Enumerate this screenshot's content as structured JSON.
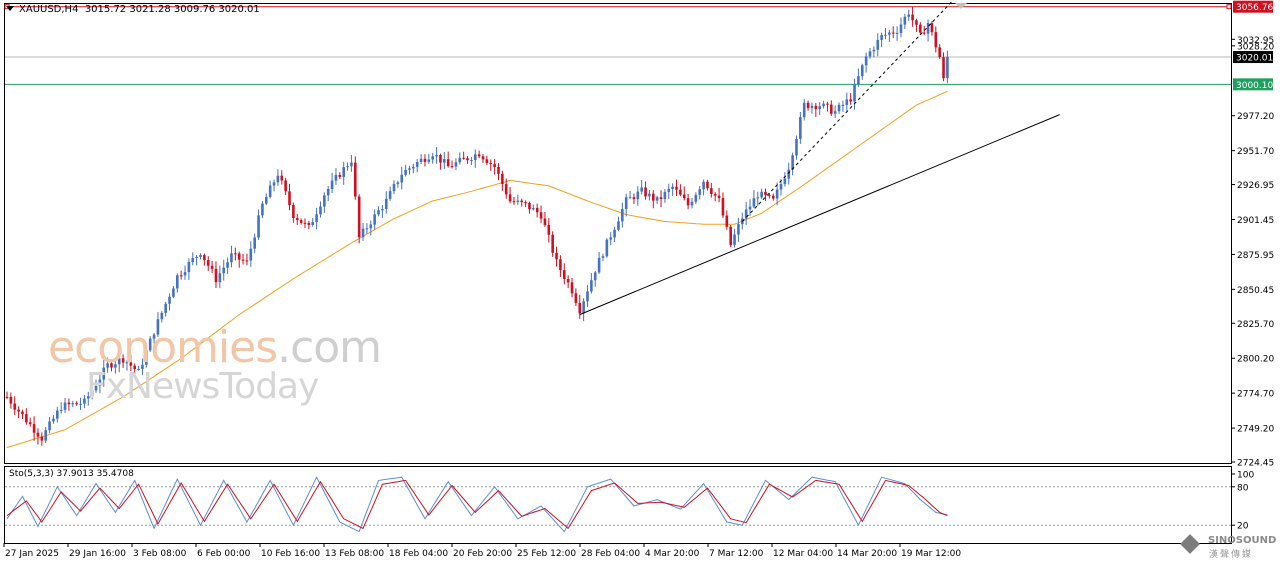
{
  "header": {
    "symbol": "XAUUSD,H4",
    "ohlc": "3015.72 3021.28 3009.76 3020.01"
  },
  "oscillator": {
    "label": "Sto(5,3,3) 37.9013 35.4708",
    "levels": [
      "100",
      "80",
      "20"
    ]
  },
  "watermark": {
    "line1_main": "economies",
    "line1_dot": ".com",
    "line2": "FxNewsToday"
  },
  "logo": {
    "name": "SINOSOUND",
    "sub": "漢聲傳媒"
  },
  "colors": {
    "bull": "#4472c4",
    "bear": "#d01020",
    "ma": "#f0a020",
    "resistance": "#d01020",
    "support": "#20a060",
    "trend": "#000000",
    "sto_main": "#5b8ed8",
    "sto_signal": "#d01020"
  },
  "chart_data": {
    "type": "candlestick",
    "y_ticks": [
      "3032.95",
      "3028.20",
      "2977.20",
      "2951.70",
      "2926.95",
      "2901.45",
      "2875.95",
      "2850.45",
      "2825.70",
      "2800.20",
      "2774.70",
      "2749.20",
      "2724.45"
    ],
    "x_ticks": [
      "27 Jan 2025",
      "29 Jan 16:00",
      "3 Feb 08:00",
      "6 Feb 00:00",
      "10 Feb 16:00",
      "13 Feb 08:00",
      "18 Feb 04:00",
      "20 Feb 20:00",
      "25 Feb 12:00",
      "28 Feb 04:00",
      "4 Mar 20:00",
      "7 Mar 12:00",
      "12 Mar 04:00",
      "14 Mar 20:00",
      "19 Mar 12:00"
    ],
    "ylim": [
      2724.45,
      3058
    ],
    "levels": [
      {
        "label": "3056.76",
        "value": 3056.76,
        "role": "resistance"
      },
      {
        "label": "3020.01",
        "value": 3020.01,
        "role": "current"
      },
      {
        "label": "3000.10",
        "value": 3000.1,
        "role": "support"
      }
    ],
    "close_path": [
      {
        "i": 0,
        "v": 2772
      },
      {
        "i": 5,
        "v": 2755
      },
      {
        "i": 9,
        "v": 2742
      },
      {
        "i": 14,
        "v": 2765
      },
      {
        "i": 20,
        "v": 2768
      },
      {
        "i": 26,
        "v": 2795
      },
      {
        "i": 30,
        "v": 2800
      },
      {
        "i": 34,
        "v": 2790
      },
      {
        "i": 38,
        "v": 2820
      },
      {
        "i": 44,
        "v": 2860
      },
      {
        "i": 50,
        "v": 2878
      },
      {
        "i": 54,
        "v": 2858
      },
      {
        "i": 58,
        "v": 2875
      },
      {
        "i": 62,
        "v": 2870
      },
      {
        "i": 66,
        "v": 2912
      },
      {
        "i": 70,
        "v": 2935
      },
      {
        "i": 74,
        "v": 2905
      },
      {
        "i": 78,
        "v": 2895
      },
      {
        "i": 82,
        "v": 2920
      },
      {
        "i": 86,
        "v": 2935
      },
      {
        "i": 89,
        "v": 2945
      },
      {
        "i": 91,
        "v": 2888
      },
      {
        "i": 94,
        "v": 2900
      },
      {
        "i": 98,
        "v": 2915
      },
      {
        "i": 102,
        "v": 2935
      },
      {
        "i": 106,
        "v": 2943
      },
      {
        "i": 110,
        "v": 2950
      },
      {
        "i": 114,
        "v": 2940
      },
      {
        "i": 118,
        "v": 2945
      },
      {
        "i": 122,
        "v": 2950
      },
      {
        "i": 126,
        "v": 2940
      },
      {
        "i": 130,
        "v": 2915
      },
      {
        "i": 134,
        "v": 2912
      },
      {
        "i": 138,
        "v": 2905
      },
      {
        "i": 142,
        "v": 2870
      },
      {
        "i": 146,
        "v": 2850
      },
      {
        "i": 148,
        "v": 2836
      },
      {
        "i": 152,
        "v": 2865
      },
      {
        "i": 156,
        "v": 2890
      },
      {
        "i": 160,
        "v": 2915
      },
      {
        "i": 164,
        "v": 2922
      },
      {
        "i": 168,
        "v": 2915
      },
      {
        "i": 172,
        "v": 2925
      },
      {
        "i": 176,
        "v": 2912
      },
      {
        "i": 180,
        "v": 2930
      },
      {
        "i": 184,
        "v": 2915
      },
      {
        "i": 187,
        "v": 2883
      },
      {
        "i": 190,
        "v": 2903
      },
      {
        "i": 194,
        "v": 2920
      },
      {
        "i": 198,
        "v": 2915
      },
      {
        "i": 202,
        "v": 2940
      },
      {
        "i": 206,
        "v": 2985
      },
      {
        "i": 210,
        "v": 2985
      },
      {
        "i": 214,
        "v": 2980
      },
      {
        "i": 218,
        "v": 2990
      },
      {
        "i": 222,
        "v": 3020
      },
      {
        "i": 226,
        "v": 3035
      },
      {
        "i": 230,
        "v": 3040
      },
      {
        "i": 233,
        "v": 3053
      },
      {
        "i": 236,
        "v": 3035
      },
      {
        "i": 238,
        "v": 3045
      },
      {
        "i": 241,
        "v": 3020
      },
      {
        "i": 242,
        "v": 3003
      },
      {
        "i": 243,
        "v": 3020
      }
    ],
    "ma_path": [
      {
        "i": 0,
        "v": 2735
      },
      {
        "i": 15,
        "v": 2748
      },
      {
        "i": 30,
        "v": 2772
      },
      {
        "i": 45,
        "v": 2800
      },
      {
        "i": 60,
        "v": 2832
      },
      {
        "i": 75,
        "v": 2860
      },
      {
        "i": 90,
        "v": 2886
      },
      {
        "i": 100,
        "v": 2902
      },
      {
        "i": 110,
        "v": 2915
      },
      {
        "i": 120,
        "v": 2922
      },
      {
        "i": 130,
        "v": 2930
      },
      {
        "i": 140,
        "v": 2926
      },
      {
        "i": 150,
        "v": 2915
      },
      {
        "i": 160,
        "v": 2905
      },
      {
        "i": 170,
        "v": 2900
      },
      {
        "i": 180,
        "v": 2898
      },
      {
        "i": 188,
        "v": 2898
      },
      {
        "i": 195,
        "v": 2906
      },
      {
        "i": 205,
        "v": 2925
      },
      {
        "i": 215,
        "v": 2945
      },
      {
        "i": 225,
        "v": 2965
      },
      {
        "i": 235,
        "v": 2985
      },
      {
        "i": 243,
        "v": 2995
      }
    ],
    "trendlines": [
      {
        "style": "solid",
        "from": {
          "i": 148,
          "v": 2832
        },
        "to": {
          "i": 272,
          "v": 2978
        }
      },
      {
        "style": "dashed",
        "from": {
          "i": 190,
          "v": 2900
        },
        "to": {
          "i": 245,
          "v": 3063
        }
      }
    ],
    "sto_k": [
      {
        "i": 0,
        "v": 30
      },
      {
        "i": 4,
        "v": 65
      },
      {
        "i": 8,
        "v": 18
      },
      {
        "i": 13,
        "v": 80
      },
      {
        "i": 18,
        "v": 35
      },
      {
        "i": 23,
        "v": 85
      },
      {
        "i": 28,
        "v": 40
      },
      {
        "i": 33,
        "v": 90
      },
      {
        "i": 38,
        "v": 15
      },
      {
        "i": 44,
        "v": 92
      },
      {
        "i": 50,
        "v": 20
      },
      {
        "i": 56,
        "v": 90
      },
      {
        "i": 62,
        "v": 25
      },
      {
        "i": 68,
        "v": 90
      },
      {
        "i": 74,
        "v": 20
      },
      {
        "i": 80,
        "v": 95
      },
      {
        "i": 86,
        "v": 25
      },
      {
        "i": 91,
        "v": 10
      },
      {
        "i": 96,
        "v": 90
      },
      {
        "i": 102,
        "v": 95
      },
      {
        "i": 108,
        "v": 30
      },
      {
        "i": 114,
        "v": 88
      },
      {
        "i": 120,
        "v": 35
      },
      {
        "i": 126,
        "v": 80
      },
      {
        "i": 132,
        "v": 30
      },
      {
        "i": 138,
        "v": 50
      },
      {
        "i": 144,
        "v": 10
      },
      {
        "i": 150,
        "v": 80
      },
      {
        "i": 156,
        "v": 92
      },
      {
        "i": 162,
        "v": 50
      },
      {
        "i": 168,
        "v": 60
      },
      {
        "i": 174,
        "v": 45
      },
      {
        "i": 180,
        "v": 85
      },
      {
        "i": 186,
        "v": 25
      },
      {
        "i": 190,
        "v": 20
      },
      {
        "i": 196,
        "v": 90
      },
      {
        "i": 202,
        "v": 60
      },
      {
        "i": 208,
        "v": 95
      },
      {
        "i": 214,
        "v": 88
      },
      {
        "i": 220,
        "v": 20
      },
      {
        "i": 226,
        "v": 95
      },
      {
        "i": 232,
        "v": 85
      },
      {
        "i": 236,
        "v": 60
      },
      {
        "i": 240,
        "v": 40
      },
      {
        "i": 243,
        "v": 36
      }
    ],
    "sto_d": [
      {
        "i": 0,
        "v": 35
      },
      {
        "i": 5,
        "v": 58
      },
      {
        "i": 9,
        "v": 25
      },
      {
        "i": 14,
        "v": 72
      },
      {
        "i": 19,
        "v": 42
      },
      {
        "i": 24,
        "v": 78
      },
      {
        "i": 29,
        "v": 46
      },
      {
        "i": 34,
        "v": 84
      },
      {
        "i": 39,
        "v": 22
      },
      {
        "i": 45,
        "v": 86
      },
      {
        "i": 51,
        "v": 26
      },
      {
        "i": 57,
        "v": 84
      },
      {
        "i": 63,
        "v": 30
      },
      {
        "i": 69,
        "v": 84
      },
      {
        "i": 75,
        "v": 26
      },
      {
        "i": 81,
        "v": 88
      },
      {
        "i": 87,
        "v": 30
      },
      {
        "i": 92,
        "v": 15
      },
      {
        "i": 97,
        "v": 84
      },
      {
        "i": 103,
        "v": 90
      },
      {
        "i": 109,
        "v": 36
      },
      {
        "i": 115,
        "v": 82
      },
      {
        "i": 121,
        "v": 40
      },
      {
        "i": 127,
        "v": 74
      },
      {
        "i": 133,
        "v": 34
      },
      {
        "i": 139,
        "v": 46
      },
      {
        "i": 145,
        "v": 15
      },
      {
        "i": 151,
        "v": 74
      },
      {
        "i": 157,
        "v": 86
      },
      {
        "i": 163,
        "v": 54
      },
      {
        "i": 169,
        "v": 56
      },
      {
        "i": 175,
        "v": 48
      },
      {
        "i": 181,
        "v": 78
      },
      {
        "i": 187,
        "v": 30
      },
      {
        "i": 191,
        "v": 24
      },
      {
        "i": 197,
        "v": 84
      },
      {
        "i": 203,
        "v": 64
      },
      {
        "i": 209,
        "v": 90
      },
      {
        "i": 215,
        "v": 84
      },
      {
        "i": 221,
        "v": 26
      },
      {
        "i": 227,
        "v": 90
      },
      {
        "i": 233,
        "v": 82
      },
      {
        "i": 237,
        "v": 62
      },
      {
        "i": 241,
        "v": 40
      },
      {
        "i": 243,
        "v": 35
      }
    ]
  }
}
